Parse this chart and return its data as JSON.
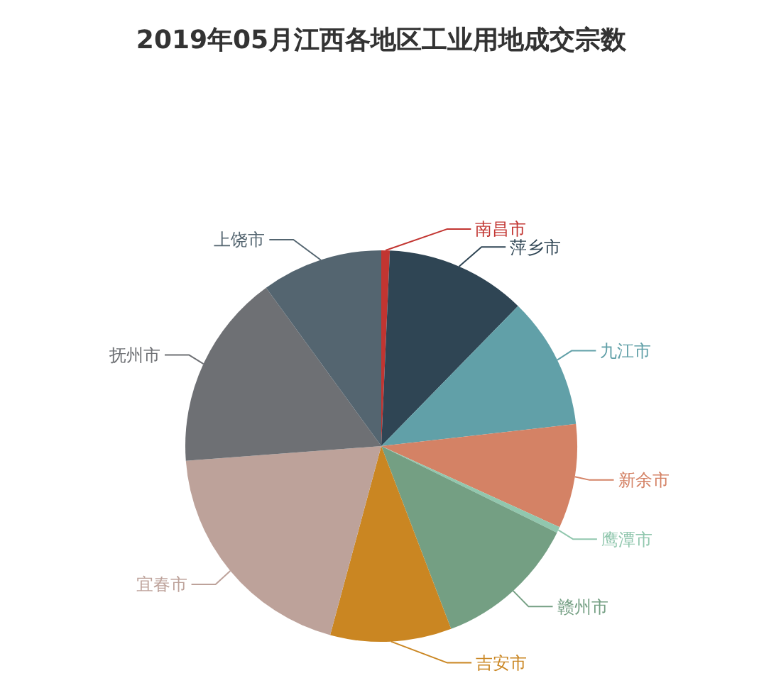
{
  "chart_data": {
    "type": "pie",
    "title": "2019年05月江西各地区工业用地成交宗数",
    "categories": [
      "南昌市",
      "萍乡市",
      "九江市",
      "新余市",
      "鹰潭市",
      "赣州市",
      "吉安市",
      "宜春市",
      "抚州市",
      "上饶市"
    ],
    "values": [
      0.7,
      11.6,
      10.9,
      8.6,
      0.5,
      11.9,
      10.0,
      19.6,
      16.2,
      10.0
    ],
    "colors": [
      "#c23531",
      "#2f4554",
      "#61a0a8",
      "#d48265",
      "#91c7ae",
      "#749f83",
      "#ca8622",
      "#bda29a",
      "#6e7074",
      "#546570"
    ]
  }
}
